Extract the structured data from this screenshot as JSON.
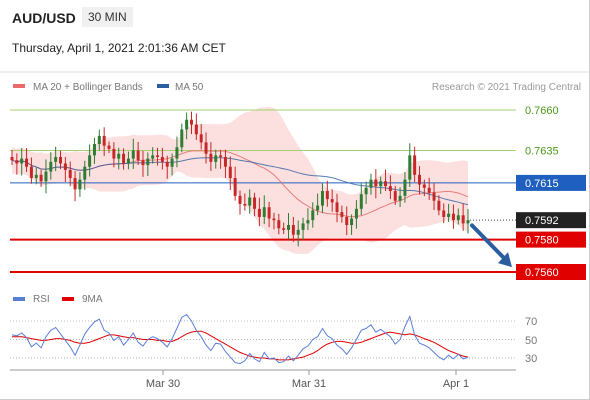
{
  "header": {
    "symbol": "AUD/USD",
    "interval": "30 MIN",
    "datetime": "Thursday, April 1, 2021 2:01:36 AM CET",
    "watermark": "Research © 2021 Trading Central"
  },
  "colors": {
    "up": "#2e7d32",
    "down": "#c62828",
    "ma20": "#e86a6a",
    "ma50": "#2b5ea0",
    "band": "#fbd6d6",
    "pivot_green": "#a5d070",
    "pivot_blue": "#1f5fbf",
    "pivot_red": "#e00000",
    "price_label": "#222222",
    "rsi": "#5b7fd6",
    "rsi_ma": "#e00000",
    "arrow": "#2b5ea0"
  },
  "chart_data": [
    {
      "type": "candlestick",
      "title": "AUD/USD",
      "legend": [
        {
          "name": "MA 20 + Bollinger Bands",
          "color": "#e86a6a"
        },
        {
          "name": "MA 50",
          "color": "#2b5ea0"
        }
      ],
      "x_tick_labels": [
        "Mar 30",
        "Mar 31",
        "Apr 1"
      ],
      "ylim": [
        0.7553,
        0.7668
      ],
      "levels": [
        {
          "value": 0.766,
          "label": "0.7660",
          "style": "resistance-green"
        },
        {
          "value": 0.7635,
          "label": "0.7635",
          "style": "resistance-green"
        },
        {
          "value": 0.7615,
          "label": "0.7615",
          "style": "pivot-blue"
        },
        {
          "value": 0.758,
          "label": "0.7580",
          "style": "support-red"
        },
        {
          "value": 0.756,
          "label": "0.7560",
          "style": "support-red"
        }
      ],
      "last_price": {
        "value": 0.7592,
        "label": "0.7592"
      },
      "forecast_arrow": {
        "from": 0.759,
        "to": 0.7563
      },
      "series": [
        {
          "name": "close",
          "values": [
            0.7629,
            0.7627,
            0.763,
            0.7625,
            0.7618,
            0.762,
            0.7616,
            0.7622,
            0.7628,
            0.7631,
            0.7627,
            0.7623,
            0.7618,
            0.7611,
            0.7617,
            0.7625,
            0.7632,
            0.7639,
            0.7644,
            0.7638,
            0.7636,
            0.763,
            0.7633,
            0.7627,
            0.763,
            0.7635,
            0.7629,
            0.7626,
            0.763,
            0.7632,
            0.7631,
            0.7628,
            0.7625,
            0.763,
            0.7637,
            0.7648,
            0.7654,
            0.7651,
            0.7645,
            0.764,
            0.7633,
            0.7628,
            0.7632,
            0.7631,
            0.7625,
            0.7618,
            0.7607,
            0.7602,
            0.7601,
            0.7606,
            0.7599,
            0.7594,
            0.76,
            0.7593,
            0.7592,
            0.7587,
            0.7586,
            0.7589,
            0.7583,
            0.7586,
            0.759,
            0.7592,
            0.7598,
            0.7601,
            0.761,
            0.7605,
            0.7603,
            0.7597,
            0.7594,
            0.7589,
            0.7593,
            0.7599,
            0.7608,
            0.7612,
            0.7617,
            0.7613,
            0.7616,
            0.7613,
            0.761,
            0.7604,
            0.7607,
            0.7617,
            0.7632,
            0.762,
            0.7614,
            0.7612,
            0.7609,
            0.7604,
            0.7598,
            0.7594,
            0.7596,
            0.7592,
            0.7595,
            0.759,
            0.7592
          ]
        }
      ]
    },
    {
      "type": "line",
      "title": "RSI",
      "legend": [
        {
          "name": "RSI",
          "color": "#5b7fd6"
        },
        {
          "name": "9MA",
          "color": "#e00000"
        }
      ],
      "y_tick_labels": [
        "70",
        "50",
        "30"
      ],
      "ylim": [
        20,
        80
      ],
      "series": [
        {
          "name": "RSI",
          "values": [
            55,
            54,
            57,
            52,
            42,
            46,
            41,
            53,
            60,
            63,
            56,
            49,
            42,
            33,
            44,
            56,
            63,
            69,
            72,
            60,
            57,
            49,
            53,
            44,
            50,
            57,
            47,
            43,
            50,
            53,
            51,
            47,
            42,
            51,
            62,
            74,
            77,
            70,
            60,
            53,
            44,
            38,
            46,
            45,
            37,
            31,
            25,
            24,
            27,
            35,
            29,
            26,
            36,
            29,
            30,
            25,
            26,
            32,
            27,
            33,
            40,
            43,
            50,
            53,
            62,
            54,
            51,
            44,
            40,
            34,
            41,
            50,
            60,
            62,
            66,
            58,
            61,
            57,
            53,
            45,
            50,
            64,
            75,
            55,
            46,
            44,
            41,
            36,
            31,
            28,
            33,
            29,
            34,
            29,
            31
          ]
        },
        {
          "name": "9MA",
          "values": [
            53,
            53,
            53,
            52,
            51,
            50,
            49,
            49,
            50,
            51,
            51,
            50,
            49,
            47,
            46,
            46,
            47,
            49,
            51,
            53,
            55,
            55,
            54,
            53,
            52,
            52,
            51,
            50,
            50,
            50,
            49,
            49,
            48,
            48,
            50,
            53,
            56,
            58,
            59,
            59,
            57,
            54,
            51,
            48,
            45,
            42,
            39,
            36,
            34,
            32,
            31,
            30,
            30,
            29,
            29,
            28,
            28,
            28,
            29,
            30,
            31,
            33,
            35,
            38,
            42,
            45,
            47,
            48,
            48,
            47,
            46,
            46,
            47,
            49,
            51,
            53,
            55,
            57,
            58,
            57,
            56,
            55,
            56,
            55,
            53,
            51,
            49,
            47,
            44,
            41,
            38,
            36,
            34,
            32,
            31
          ]
        }
      ]
    }
  ]
}
